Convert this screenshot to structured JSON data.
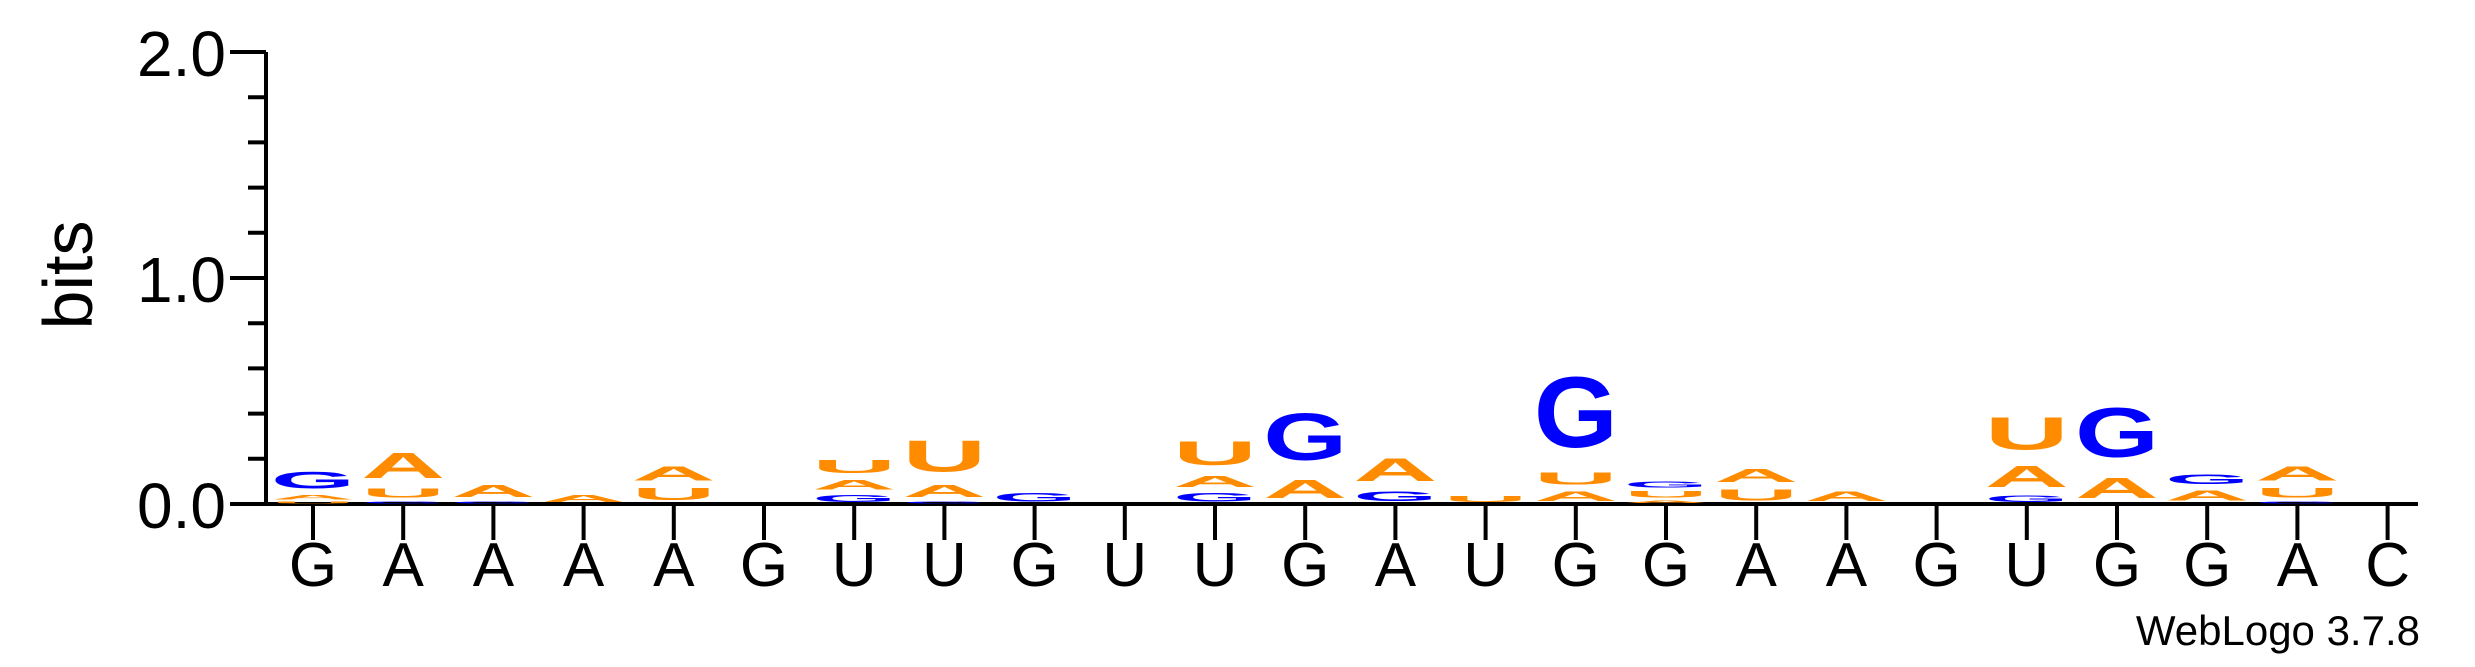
{
  "chart_data": {
    "type": "sequence-logo",
    "ylabel": "bits",
    "ylim": [
      0,
      2.0
    ],
    "yticks": [
      "0.0",
      "1.0",
      "2.0"
    ],
    "footer": "WebLogo 3.7.8",
    "colors": {
      "A": "#ff8c00",
      "U": "#ff8c00",
      "G": "#0000ff",
      "C": "#0000ff"
    },
    "positions": [
      {
        "label": "G",
        "stack": [
          [
            "U",
            0.015
          ],
          [
            "A",
            0.03
          ],
          [
            "G",
            0.12
          ]
        ]
      },
      {
        "label": "A",
        "stack": [
          [
            "G",
            0.015
          ],
          [
            "U",
            0.065
          ],
          [
            "A",
            0.18
          ]
        ]
      },
      {
        "label": "A",
        "stack": [
          [
            "G",
            0.015
          ],
          [
            "A",
            0.085
          ]
        ]
      },
      {
        "label": "A",
        "stack": [
          [
            "A",
            0.05
          ]
        ]
      },
      {
        "label": "A",
        "stack": [
          [
            "U",
            0.085
          ],
          [
            "A",
            0.1
          ]
        ]
      },
      {
        "label": "G",
        "stack": []
      },
      {
        "label": "U",
        "stack": [
          [
            "G",
            0.05
          ],
          [
            "A",
            0.07
          ],
          [
            "U",
            0.09
          ]
        ]
      },
      {
        "label": "U",
        "stack": [
          [
            "G",
            0.015
          ],
          [
            "A",
            0.085
          ],
          [
            "U",
            0.22
          ]
        ]
      },
      {
        "label": "G",
        "stack": [
          [
            "G",
            0.06
          ]
        ]
      },
      {
        "label": "U",
        "stack": []
      },
      {
        "label": "U",
        "stack": [
          [
            "G",
            0.06
          ],
          [
            "A",
            0.08
          ],
          [
            "U",
            0.17
          ]
        ]
      },
      {
        "label": "G",
        "stack": [
          [
            "A",
            0.13
          ],
          [
            "G",
            0.33
          ]
        ]
      },
      {
        "label": "A",
        "stack": [
          [
            "G",
            0.07
          ],
          [
            "A",
            0.16
          ]
        ]
      },
      {
        "label": "U",
        "stack": [
          [
            "U",
            0.04
          ]
        ]
      },
      {
        "label": "G",
        "stack": [
          [
            "A",
            0.07
          ],
          [
            "U",
            0.085
          ],
          [
            "G",
            0.5
          ]
        ]
      },
      {
        "label": "G",
        "stack": [
          [
            "A",
            0.02
          ],
          [
            "U",
            0.045
          ],
          [
            "G",
            0.04
          ]
        ]
      },
      {
        "label": "A",
        "stack": [
          [
            "U",
            0.08
          ],
          [
            "A",
            0.09
          ]
        ]
      },
      {
        "label": "A",
        "stack": [
          [
            "A",
            0.07
          ]
        ]
      },
      {
        "label": "G",
        "stack": []
      },
      {
        "label": "U",
        "stack": [
          [
            "G",
            0.045
          ],
          [
            "A",
            0.15
          ],
          [
            "U",
            0.23
          ]
        ]
      },
      {
        "label": "G",
        "stack": [
          [
            "A",
            0.14
          ],
          [
            "G",
            0.35
          ]
        ]
      },
      {
        "label": "G",
        "stack": [
          [
            "A",
            0.075
          ],
          [
            "G",
            0.07
          ]
        ]
      },
      {
        "label": "A",
        "stack": [
          [
            "G",
            0.015
          ],
          [
            "U",
            0.07
          ],
          [
            "A",
            0.1
          ]
        ]
      },
      {
        "label": "C",
        "stack": []
      }
    ]
  }
}
